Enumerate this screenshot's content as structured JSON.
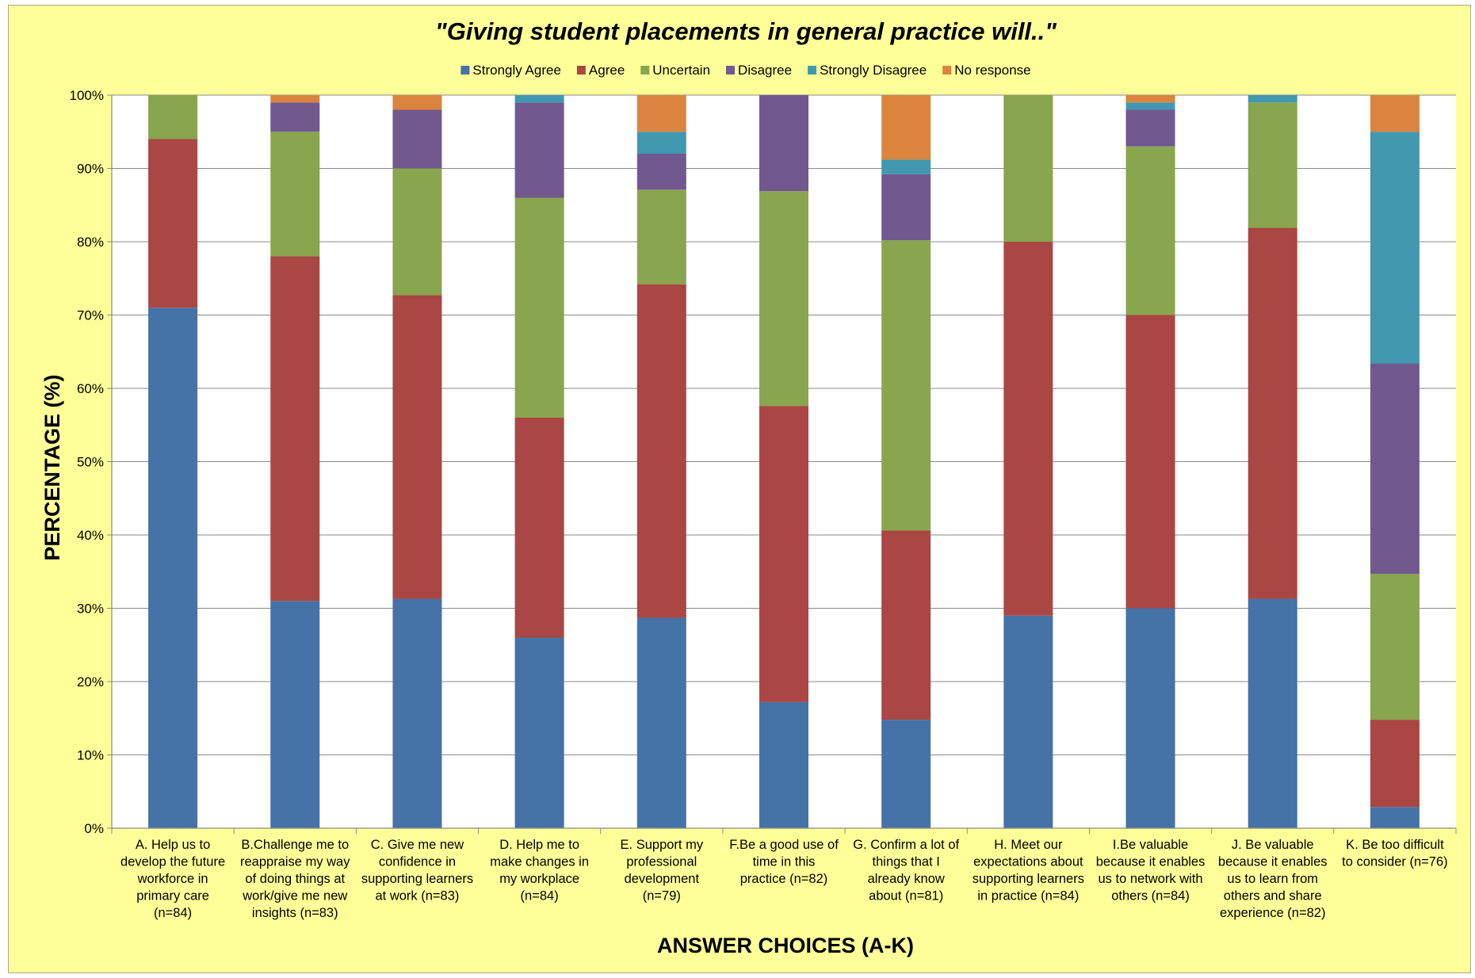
{
  "chart_data": {
    "type": "bar",
    "stacked": true,
    "title": "\"Giving student placements in general practice will..\"",
    "xlabel": "ANSWER CHOICES (A-K)",
    "ylabel": "PERCENTAGE (%)",
    "ylim": [
      0,
      100
    ],
    "yticks": [
      "0%",
      "10%",
      "20%",
      "30%",
      "40%",
      "50%",
      "60%",
      "70%",
      "80%",
      "90%",
      "100%"
    ],
    "grid": true,
    "legend_position": "top",
    "categories": [
      [
        "A. Help us to",
        "develop the future",
        "workforce in",
        "primary care",
        "(n=84)"
      ],
      [
        "B.Challenge me to",
        "reappraise my way",
        "of doing things at",
        "work/give me new",
        "insights (n=83)"
      ],
      [
        "C. Give me new",
        "confidence in",
        "supporting learners",
        "at work (n=83)"
      ],
      [
        "D. Help me to",
        "make changes in",
        "my workplace",
        "(n=84)"
      ],
      [
        "E. Support my",
        "professional",
        "development",
        "(n=79)"
      ],
      [
        "F.Be a good use of",
        "time in this",
        "practice (n=82)"
      ],
      [
        "G. Confirm a lot of",
        "things that I",
        "already know",
        "about (n=81)"
      ],
      [
        "H. Meet our",
        "expectations about",
        "supporting learners",
        "in practice (n=84)"
      ],
      [
        "I.Be valuable",
        "because it enables",
        "us to network with",
        "others (n=84)"
      ],
      [
        "J. Be valuable",
        "because it enables",
        "us to learn from",
        "others and share",
        "experience (n=82)"
      ],
      [
        "K. Be too difficult",
        "to consider (n=76)"
      ]
    ],
    "series": [
      {
        "name": "Strongly Agree",
        "color": "#4572A7",
        "values": [
          71,
          31,
          31.3,
          26,
          28.7,
          17.2,
          14.8,
          29,
          30,
          31.3,
          2.9
        ]
      },
      {
        "name": "Agree",
        "color": "#AA4643",
        "values": [
          23,
          47,
          41.4,
          30,
          45.5,
          40.4,
          25.8,
          51,
          40,
          50.6,
          11.9
        ]
      },
      {
        "name": "Uncertain",
        "color": "#89A54E",
        "values": [
          6,
          17,
          17.3,
          30,
          12.9,
          29.3,
          39.6,
          20,
          23,
          17.1,
          19.9
        ]
      },
      {
        "name": "Disagree",
        "color": "#71588F",
        "values": [
          0,
          4,
          8,
          13,
          4.9,
          13.1,
          9,
          0,
          5,
          0,
          28.7
        ]
      },
      {
        "name": "Strongly Disagree",
        "color": "#4198AF",
        "values": [
          0,
          0,
          0,
          1,
          3,
          0,
          2,
          0,
          1,
          1,
          31.6
        ]
      },
      {
        "name": "No response",
        "color": "#DB843D",
        "values": [
          0,
          1,
          2,
          0,
          5,
          0,
          8.8,
          0,
          1,
          0,
          5
        ]
      }
    ]
  }
}
